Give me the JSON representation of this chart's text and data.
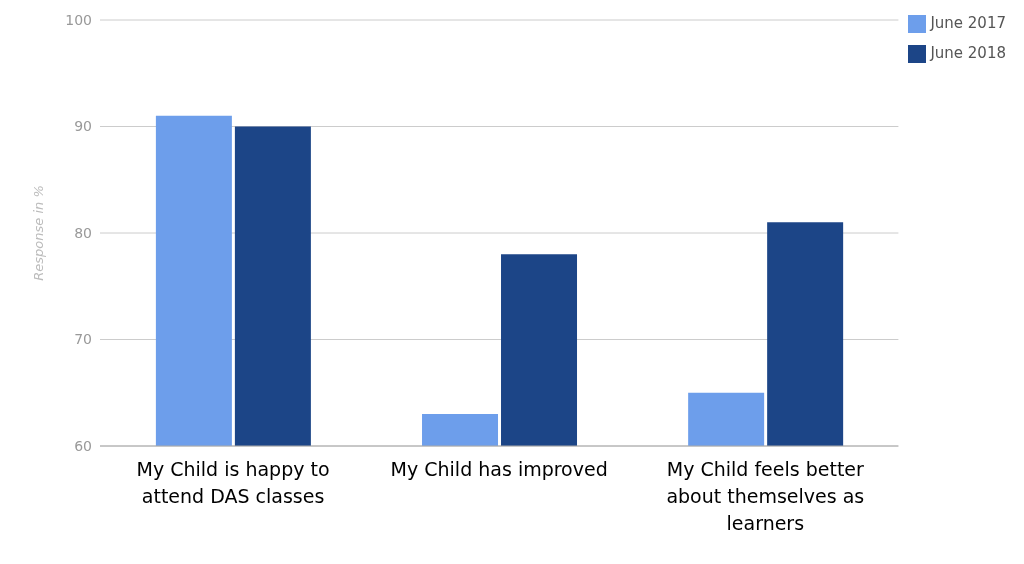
{
  "chart_data": {
    "type": "bar",
    "ylabel": "Response in %",
    "categories": [
      "My Child is happy to attend DAS classes",
      "My Child has improved",
      "My Child feels better about themselves as learners"
    ],
    "series": [
      {
        "name": "June 2017",
        "color": "#6d9eeb",
        "values": [
          91,
          63,
          65
        ]
      },
      {
        "name": "June 2018",
        "color": "#1c4587",
        "values": [
          90,
          78,
          81
        ]
      }
    ],
    "ylim": [
      60,
      100
    ],
    "yticks": [
      60,
      70,
      80,
      90,
      100
    ],
    "grid": "y",
    "legend": "top right"
  }
}
